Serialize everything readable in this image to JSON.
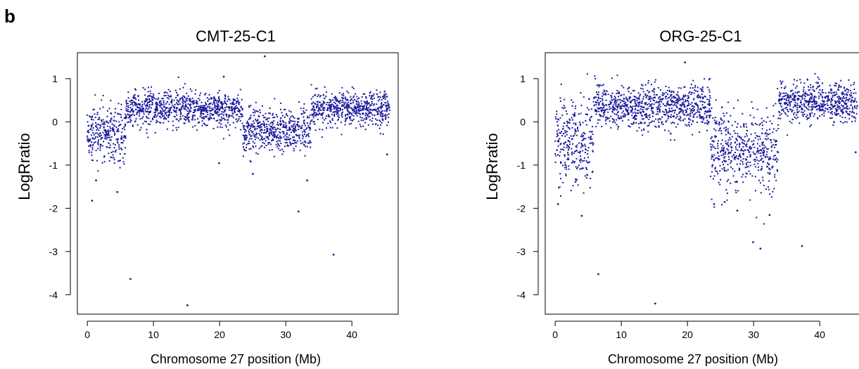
{
  "panel_label": "b",
  "colors": {
    "points": "#1a1a9c",
    "axes": "#000000",
    "background": "#ffffff"
  },
  "chart_data": [
    {
      "type": "scatter",
      "title": "CMT-25-C1",
      "xlabel": "Chromosome 27 position (Mb)",
      "ylabel": "LogRratio",
      "xlim": [
        -1.5,
        47
      ],
      "ylim": [
        -4.45,
        1.6
      ],
      "xticks": [
        0,
        10,
        20,
        30,
        40
      ],
      "yticks": [
        -4,
        -3,
        -2,
        -1,
        0,
        1
      ],
      "grid": false,
      "approx_density_points": 2200,
      "segments": [
        {
          "x_start": 0.0,
          "x_end": 5.8,
          "mean": -0.3,
          "spread": 0.33
        },
        {
          "x_start": 5.8,
          "x_end": 23.5,
          "mean": 0.3,
          "spread": 0.2
        },
        {
          "x_start": 23.5,
          "x_end": 33.8,
          "mean": -0.2,
          "spread": 0.24
        },
        {
          "x_start": 33.8,
          "x_end": 45.7,
          "mean": 0.3,
          "spread": 0.2
        }
      ],
      "outliers": [
        [
          0.7,
          -1.82
        ],
        [
          1.3,
          -1.35
        ],
        [
          4.5,
          -1.62
        ],
        [
          6.5,
          -3.63
        ],
        [
          15.1,
          -4.24
        ],
        [
          26.8,
          1.52
        ],
        [
          31.9,
          -2.07
        ],
        [
          37.2,
          -3.07
        ],
        [
          25.0,
          -1.2
        ],
        [
          45.3,
          -0.75
        ],
        [
          19.9,
          -0.95
        ],
        [
          33.2,
          -1.35
        ],
        [
          20.6,
          1.05
        ]
      ]
    },
    {
      "type": "scatter",
      "title": "ORG-25-C1",
      "xlabel": "Chromosome 27 position (Mb)",
      "ylabel": "LogRratio",
      "xlim": [
        -1.5,
        47
      ],
      "ylim": [
        -4.45,
        1.6
      ],
      "xticks": [
        0,
        10,
        20,
        30,
        40
      ],
      "yticks": [
        -4,
        -3,
        -2,
        -1,
        0,
        1
      ],
      "grid": false,
      "approx_density_points": 2200,
      "segments": [
        {
          "x_start": 0.0,
          "x_end": 5.8,
          "mean": -0.45,
          "spread": 0.5
        },
        {
          "x_start": 5.8,
          "x_end": 23.5,
          "mean": 0.35,
          "spread": 0.25
        },
        {
          "x_start": 23.5,
          "x_end": 33.8,
          "mean": -0.65,
          "spread": 0.45
        },
        {
          "x_start": 33.8,
          "x_end": 45.7,
          "mean": 0.45,
          "spread": 0.22
        }
      ],
      "outliers": [
        [
          0.4,
          -1.9
        ],
        [
          4.0,
          -2.17
        ],
        [
          6.5,
          -3.52
        ],
        [
          15.1,
          -4.2
        ],
        [
          19.6,
          1.38
        ],
        [
          24.0,
          -1.9
        ],
        [
          27.5,
          -2.05
        ],
        [
          29.9,
          -2.78
        ],
        [
          31.0,
          -2.93
        ],
        [
          37.3,
          -2.87
        ],
        [
          32.4,
          -2.15
        ],
        [
          45.4,
          -0.7
        ],
        [
          25.6,
          -1.85
        ]
      ]
    }
  ]
}
